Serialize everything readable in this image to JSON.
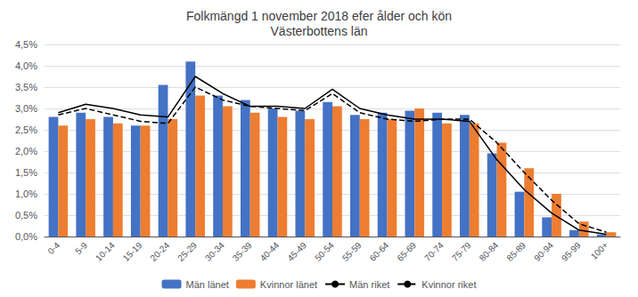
{
  "chart_data": {
    "type": "bar",
    "title": "Folkmängd 1 november 2018 efer ålder och kön\nVästerbottens län",
    "categories": [
      "0-4",
      "5-9",
      "10-14",
      "15-19",
      "20-24",
      "25-29",
      "30-34",
      "35-39",
      "40-44",
      "45-49",
      "50-54",
      "55-59",
      "60-64",
      "65-69",
      "70-74",
      "75-79",
      "80-84",
      "85-89",
      "90-94",
      "95-99",
      "100+"
    ],
    "series": [
      {
        "name": "Män länet",
        "type": "bar",
        "color": "#4472C4",
        "values": [
          2.8,
          2.9,
          2.8,
          2.6,
          3.55,
          4.1,
          3.3,
          3.2,
          3.0,
          2.95,
          3.15,
          2.85,
          2.9,
          2.95,
          2.9,
          2.85,
          1.95,
          1.05,
          0.45,
          0.15,
          0.05
        ]
      },
      {
        "name": "Kvinnor länet",
        "type": "bar",
        "color": "#ED7D31",
        "values": [
          2.6,
          2.75,
          2.65,
          2.6,
          2.75,
          3.3,
          3.05,
          2.9,
          2.8,
          2.75,
          3.05,
          2.75,
          2.75,
          3.0,
          2.65,
          2.65,
          2.2,
          1.6,
          1.0,
          0.35,
          0.1
        ]
      },
      {
        "name": "Män riket",
        "type": "line",
        "color": "#000000",
        "line_style": "solid",
        "values": [
          2.9,
          3.1,
          3.0,
          2.85,
          2.8,
          3.75,
          3.35,
          3.05,
          3.05,
          3.0,
          3.45,
          3.0,
          2.85,
          2.75,
          2.75,
          2.7,
          1.8,
          1.1,
          0.55,
          0.15,
          0.05
        ]
      },
      {
        "name": "Kvinnor riket",
        "type": "line",
        "color": "#000000",
        "line_style": "dashed",
        "values": [
          2.85,
          3.0,
          2.85,
          2.7,
          2.65,
          3.5,
          3.2,
          3.05,
          3.0,
          2.95,
          3.35,
          2.9,
          2.75,
          2.7,
          2.75,
          2.75,
          2.2,
          1.5,
          0.85,
          0.3,
          0.1
        ]
      }
    ],
    "ylim": [
      0,
      4.5
    ],
    "yticks": [
      {
        "value": 0.0,
        "label": "0,0%"
      },
      {
        "value": 0.5,
        "label": "0,5%"
      },
      {
        "value": 1.0,
        "label": "1,0%"
      },
      {
        "value": 1.5,
        "label": "1,5%"
      },
      {
        "value": 2.0,
        "label": "2,0%"
      },
      {
        "value": 2.5,
        "label": "2,5%"
      },
      {
        "value": 3.0,
        "label": "3,0%"
      },
      {
        "value": 3.5,
        "label": "3,5%"
      },
      {
        "value": 4.0,
        "label": "4,0%"
      },
      {
        "value": 4.5,
        "label": "4,5%"
      }
    ],
    "grid": true,
    "legend": "bottom"
  }
}
